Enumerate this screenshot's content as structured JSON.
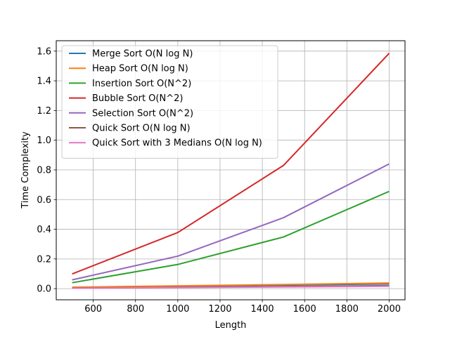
{
  "chart_data": {
    "type": "line",
    "xlabel": "Length",
    "ylabel": "Time Complexity",
    "xlim": [
      425,
      2075
    ],
    "ylim": [
      -0.075,
      1.67
    ],
    "xticks": [
      600,
      800,
      1000,
      1200,
      1400,
      1600,
      1800,
      2000
    ],
    "yticks": [
      0.0,
      0.2,
      0.4,
      0.6,
      0.8,
      1.0,
      1.2,
      1.4,
      1.6
    ],
    "ytick_labels": [
      "0.0",
      "0.2",
      "0.4",
      "0.6",
      "0.8",
      "1.0",
      "1.2",
      "1.4",
      "1.6"
    ],
    "grid": true,
    "legend_position": "top-left",
    "x": [
      500,
      1000,
      1500,
      2000
    ],
    "series": [
      {
        "name": "Merge Sort O(N log N)",
        "color": "#1f77b4",
        "values": [
          0.008,
          0.016,
          0.024,
          0.032
        ]
      },
      {
        "name": "Heap Sort O(N log N)",
        "color": "#ff7f0e",
        "values": [
          0.01,
          0.019,
          0.028,
          0.038
        ]
      },
      {
        "name": "Insertion Sort O(N^2)",
        "color": "#2ca02c",
        "values": [
          0.04,
          0.163,
          0.348,
          0.655
        ]
      },
      {
        "name": "Bubble Sort O(N^2)",
        "color": "#d62728",
        "values": [
          0.099,
          0.378,
          0.83,
          1.585
        ]
      },
      {
        "name": "Selection Sort O(N^2)",
        "color": "#9467bd",
        "values": [
          0.059,
          0.219,
          0.478,
          0.84
        ]
      },
      {
        "name": "Quick Sort O(N log N)",
        "color": "#8c564b",
        "values": [
          0.004,
          0.009,
          0.014,
          0.02
        ]
      },
      {
        "name": "Quick Sort with 3 Medians O(N log N)",
        "color": "#e377c2",
        "values": [
          0.003,
          0.007,
          0.011,
          0.016
        ]
      }
    ]
  }
}
